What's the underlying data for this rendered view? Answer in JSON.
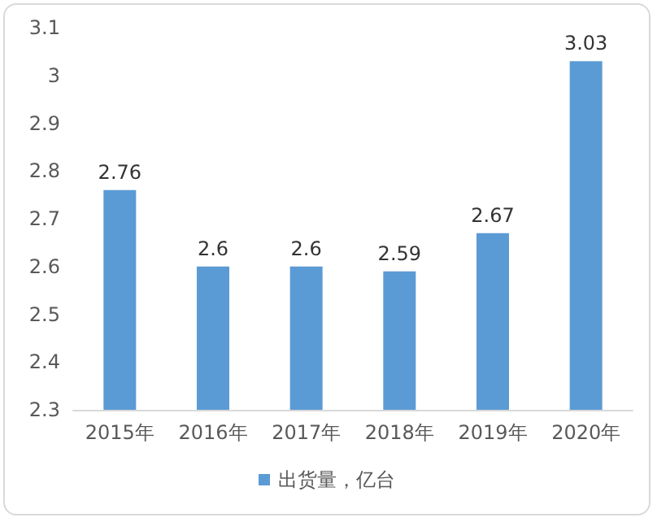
{
  "chart_data": {
    "type": "bar",
    "categories": [
      "2015年",
      "2016年",
      "2017年",
      "2018年",
      "2019年",
      "2020年"
    ],
    "series": [
      {
        "name": "出货量，亿台",
        "color": "#5b9bd5",
        "values": [
          2.76,
          2.6,
          2.6,
          2.59,
          2.67,
          3.03
        ]
      }
    ],
    "ylim": [
      2.3,
      3.1
    ],
    "yticks": [
      2.3,
      2.4,
      2.5,
      2.6,
      2.7,
      2.8,
      2.9,
      3,
      3.1
    ],
    "data_labels": true,
    "grid": false,
    "legend": "bottom"
  }
}
